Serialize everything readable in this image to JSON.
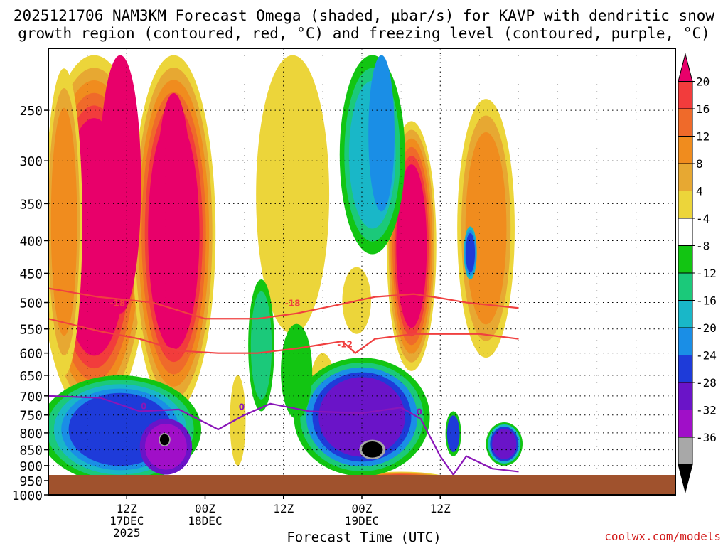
{
  "title_line1": "2025121706 NAM3KM Forecast Omega (shaded, μbar/s) for KAVP with dendritic snow",
  "title_line2": "growth region (contoured, red, °C) and freezing level (contoured, purple, °C)",
  "credit": "coolwx.com/models",
  "chart_data": {
    "type": "heatmap",
    "title": "2025121706 NAM3KM Forecast Omega (shaded, μbar/s) for KAVP with dendritic snow growth region (contoured, red, °C) and freezing level (contoured, purple, °C)",
    "xlabel": "Forecast Time (UTC)",
    "ylabel": "",
    "y_axis": {
      "ticks": [
        250,
        300,
        350,
        400,
        450,
        500,
        550,
        600,
        650,
        700,
        750,
        800,
        850,
        900,
        950,
        1000
      ],
      "range": [
        1000,
        200
      ],
      "scale": "log-pressure"
    },
    "x_axis": {
      "range_hours": [
        6,
        54
      ],
      "ticks": [
        {
          "hour": 12,
          "lines": [
            "12Z",
            "17DEC",
            "2025"
          ]
        },
        {
          "hour": 18,
          "lines": [
            "00Z",
            "18DEC"
          ]
        },
        {
          "hour": 24,
          "lines": [
            "12Z"
          ]
        },
        {
          "hour": 30,
          "lines": [
            "00Z",
            "19DEC"
          ]
        },
        {
          "hour": 36,
          "lines": [
            "12Z"
          ]
        }
      ]
    },
    "grid": true,
    "colorbar": {
      "labels": [
        "20",
        "16",
        "12",
        "8",
        "4",
        "-4",
        "-8",
        "-12",
        "-16",
        "-20",
        "-24",
        "-28",
        "-32",
        "-36"
      ],
      "colors": [
        "#e8006a",
        "#f23c3c",
        "#ef6a2a",
        "#f08c1e",
        "#e7a832",
        "#ecd53a",
        "#ffffff",
        "#12c512",
        "#1bc97a",
        "#19b7c8",
        "#1a8ee6",
        "#1e3bd9",
        "#6a14c8",
        "#a00fc8",
        "#a8a8a8",
        "#000000"
      ]
    },
    "contours": [
      {
        "name": "-18",
        "color": "#f04040",
        "x": [
          6,
          9.8,
          14,
          18,
          22,
          25,
          28,
          31,
          34,
          36,
          38,
          40,
          42
        ],
        "y": [
          475,
          490,
          500,
          530,
          530,
          520,
          505,
          490,
          485,
          492,
          500,
          505,
          510
        ]
      },
      {
        "name": "-12",
        "color": "#f04040",
        "x": [
          6,
          10,
          13,
          16,
          19,
          22,
          25,
          28.5,
          29.5,
          31,
          34,
          36,
          39,
          42
        ],
        "y": [
          530,
          555,
          570,
          595,
          600,
          600,
          590,
          575,
          600,
          570,
          560,
          560,
          560,
          570
        ]
      },
      {
        "name": "0",
        "color": "#8a16b8",
        "x": [
          6,
          10,
          13,
          16,
          19,
          21,
          23,
          26,
          30,
          33,
          34.5,
          36,
          37,
          38,
          40,
          42
        ],
        "y": [
          700,
          705,
          740,
          735,
          790,
          750,
          720,
          740,
          745,
          730,
          760,
          870,
          930,
          870,
          910,
          920
        ]
      }
    ],
    "contour_labels": [
      {
        "text": "-18",
        "x": 11.3,
        "y": 500
      },
      {
        "text": "-18",
        "x": 24.7,
        "y": 500
      },
      {
        "text": "-12",
        "x": 28.7,
        "y": 580
      },
      {
        "text": "0",
        "x": 13.3,
        "y": 725
      },
      {
        "text": "0",
        "x": 20.8,
        "y": 727
      },
      {
        "text": "0",
        "x": 34.4,
        "y": 740
      }
    ]
  }
}
